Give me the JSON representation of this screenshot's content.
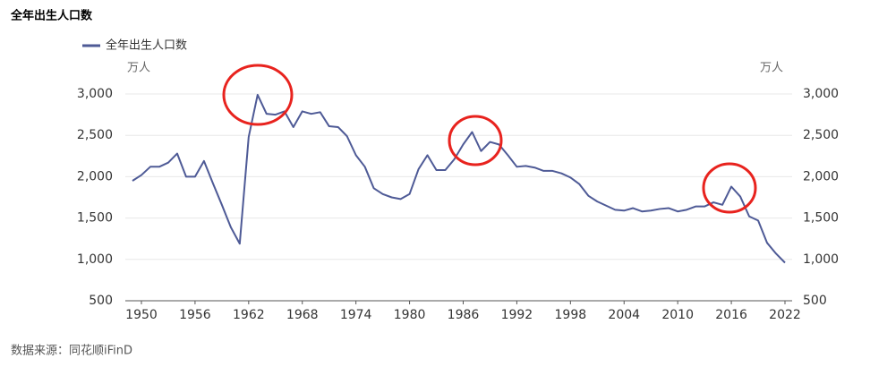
{
  "chart_data": {
    "type": "line",
    "title": "全年出生人口数",
    "y_label": "万人",
    "y2_label": "万人",
    "source": "数据来源：同花顺iFinD",
    "x": [
      1949,
      1950,
      1951,
      1952,
      1953,
      1954,
      1955,
      1956,
      1957,
      1958,
      1959,
      1960,
      1961,
      1962,
      1963,
      1964,
      1965,
      1966,
      1967,
      1968,
      1969,
      1970,
      1971,
      1972,
      1973,
      1974,
      1975,
      1976,
      1977,
      1978,
      1979,
      1980,
      1981,
      1982,
      1983,
      1984,
      1985,
      1986,
      1987,
      1988,
      1989,
      1990,
      1991,
      1992,
      1993,
      1994,
      1995,
      1996,
      1997,
      1998,
      1999,
      2000,
      2001,
      2002,
      2003,
      2004,
      2005,
      2006,
      2007,
      2008,
      2009,
      2010,
      2011,
      2012,
      2013,
      2014,
      2015,
      2016,
      2017,
      2018,
      2019,
      2020,
      2021,
      2022
    ],
    "series": [
      {
        "name": "全年出生人口数",
        "color": "#4e5a96",
        "values": [
          1950,
          2020,
          2120,
          2120,
          2170,
          2280,
          2000,
          2000,
          2190,
          1920,
          1660,
          1390,
          1190,
          2480,
          2990,
          2760,
          2750,
          2790,
          2600,
          2790,
          2760,
          2780,
          2610,
          2600,
          2490,
          2260,
          2120,
          1860,
          1790,
          1750,
          1730,
          1790,
          2090,
          2260,
          2080,
          2080,
          2210,
          2390,
          2540,
          2310,
          2420,
          2390,
          2260,
          2120,
          2130,
          2110,
          2070,
          2070,
          2040,
          1990,
          1910,
          1770,
          1700,
          1650,
          1600,
          1590,
          1620,
          1580,
          1590,
          1610,
          1620,
          1580,
          1600,
          1640,
          1640,
          1690,
          1660,
          1880,
          1760,
          1520,
          1470,
          1200,
          1070,
          960
        ]
      }
    ],
    "xlim": [
      1949,
      2022
    ],
    "xticks": [
      1950,
      1956,
      1962,
      1968,
      1974,
      1980,
      1986,
      1992,
      1998,
      2004,
      2010,
      2016,
      2022
    ],
    "ylim": [
      500,
      3000
    ],
    "yticks": [
      {
        "value": 500,
        "label": "500"
      },
      {
        "value": 1000,
        "label": "1,000"
      },
      {
        "value": 1500,
        "label": "1,500"
      },
      {
        "value": 2000,
        "label": "2,000"
      },
      {
        "value": 2500,
        "label": "2,500"
      },
      {
        "value": 3000,
        "label": "3,000"
      }
    ],
    "grid": true
  }
}
